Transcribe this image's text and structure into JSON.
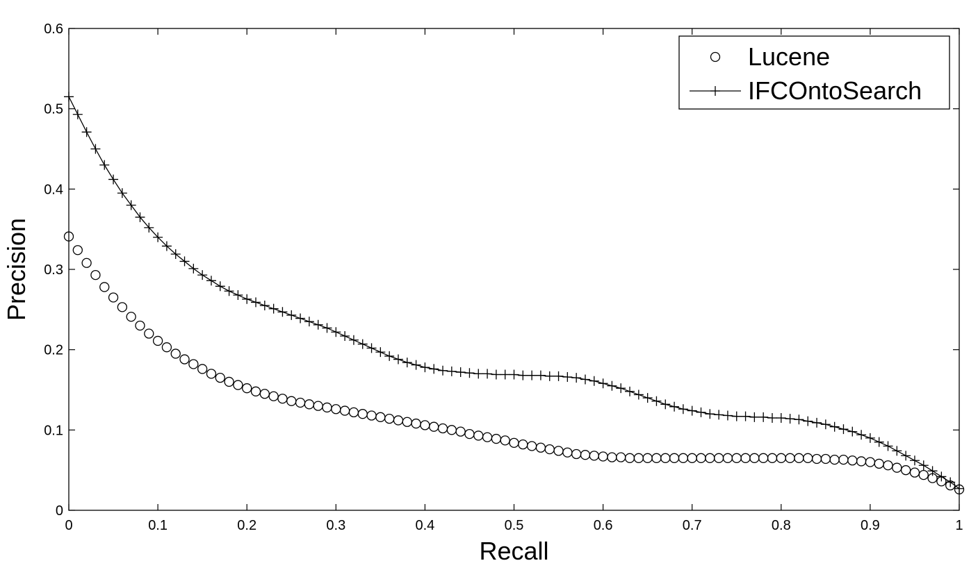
{
  "chart_data": {
    "type": "line",
    "xlabel": "Recall",
    "ylabel": "Precision",
    "xlim": [
      0,
      1
    ],
    "ylim": [
      0,
      0.6
    ],
    "xticks": [
      "0",
      "0.1",
      "0.2",
      "0.3",
      "0.4",
      "0.5",
      "0.6",
      "0.7",
      "0.8",
      "0.9",
      "1"
    ],
    "yticks": [
      "0",
      "0.1",
      "0.2",
      "0.3",
      "0.4",
      "0.5",
      "0.6"
    ],
    "grid": false,
    "legend_position": "top-right",
    "x": [
      0.0,
      0.01,
      0.02,
      0.03,
      0.04,
      0.05,
      0.06,
      0.07,
      0.08,
      0.09,
      0.1,
      0.11,
      0.12,
      0.13,
      0.14,
      0.15,
      0.16,
      0.17,
      0.18,
      0.19,
      0.2,
      0.21,
      0.22,
      0.23,
      0.24,
      0.25,
      0.26,
      0.27,
      0.28,
      0.29,
      0.3,
      0.31,
      0.32,
      0.33,
      0.34,
      0.35,
      0.36,
      0.37,
      0.38,
      0.39,
      0.4,
      0.41,
      0.42,
      0.43,
      0.44,
      0.45,
      0.46,
      0.47,
      0.48,
      0.49,
      0.5,
      0.51,
      0.52,
      0.53,
      0.54,
      0.55,
      0.56,
      0.57,
      0.58,
      0.59,
      0.6,
      0.61,
      0.62,
      0.63,
      0.64,
      0.65,
      0.66,
      0.67,
      0.68,
      0.69,
      0.7,
      0.71,
      0.72,
      0.73,
      0.74,
      0.75,
      0.76,
      0.77,
      0.78,
      0.79,
      0.8,
      0.81,
      0.82,
      0.83,
      0.84,
      0.85,
      0.86,
      0.87,
      0.88,
      0.89,
      0.9,
      0.91,
      0.92,
      0.93,
      0.94,
      0.95,
      0.96,
      0.97,
      0.98,
      0.99,
      1.0
    ],
    "series": [
      {
        "name": "Lucene",
        "marker": "circle",
        "line": false,
        "values": [
          0.341,
          0.324,
          0.308,
          0.293,
          0.278,
          0.265,
          0.253,
          0.241,
          0.23,
          0.22,
          0.211,
          0.203,
          0.195,
          0.188,
          0.182,
          0.176,
          0.17,
          0.165,
          0.16,
          0.156,
          0.152,
          0.148,
          0.145,
          0.142,
          0.139,
          0.136,
          0.134,
          0.132,
          0.13,
          0.128,
          0.126,
          0.124,
          0.122,
          0.12,
          0.118,
          0.116,
          0.114,
          0.112,
          0.11,
          0.108,
          0.106,
          0.104,
          0.102,
          0.1,
          0.098,
          0.095,
          0.093,
          0.091,
          0.089,
          0.087,
          0.084,
          0.082,
          0.08,
          0.078,
          0.076,
          0.074,
          0.072,
          0.07,
          0.069,
          0.068,
          0.067,
          0.066,
          0.066,
          0.065,
          0.065,
          0.065,
          0.065,
          0.065,
          0.065,
          0.065,
          0.065,
          0.065,
          0.065,
          0.065,
          0.065,
          0.065,
          0.065,
          0.065,
          0.065,
          0.065,
          0.065,
          0.065,
          0.065,
          0.065,
          0.064,
          0.064,
          0.063,
          0.063,
          0.062,
          0.061,
          0.06,
          0.058,
          0.056,
          0.053,
          0.05,
          0.047,
          0.044,
          0.04,
          0.036,
          0.031,
          0.026
        ]
      },
      {
        "name": "IFCOntoSearch",
        "marker": "plus",
        "line": true,
        "values": [
          0.515,
          0.493,
          0.471,
          0.45,
          0.43,
          0.412,
          0.395,
          0.38,
          0.365,
          0.352,
          0.34,
          0.329,
          0.319,
          0.31,
          0.301,
          0.293,
          0.286,
          0.279,
          0.273,
          0.268,
          0.263,
          0.259,
          0.255,
          0.251,
          0.247,
          0.243,
          0.239,
          0.235,
          0.231,
          0.227,
          0.222,
          0.217,
          0.212,
          0.207,
          0.202,
          0.197,
          0.192,
          0.188,
          0.184,
          0.181,
          0.178,
          0.176,
          0.174,
          0.173,
          0.172,
          0.171,
          0.17,
          0.17,
          0.169,
          0.169,
          0.169,
          0.168,
          0.168,
          0.168,
          0.167,
          0.167,
          0.166,
          0.165,
          0.163,
          0.161,
          0.158,
          0.155,
          0.152,
          0.148,
          0.144,
          0.14,
          0.136,
          0.132,
          0.129,
          0.126,
          0.124,
          0.122,
          0.12,
          0.119,
          0.118,
          0.117,
          0.117,
          0.116,
          0.116,
          0.115,
          0.115,
          0.114,
          0.113,
          0.111,
          0.109,
          0.107,
          0.104,
          0.101,
          0.098,
          0.094,
          0.09,
          0.085,
          0.08,
          0.074,
          0.068,
          0.062,
          0.056,
          0.049,
          0.042,
          0.035,
          0.027
        ]
      }
    ]
  }
}
